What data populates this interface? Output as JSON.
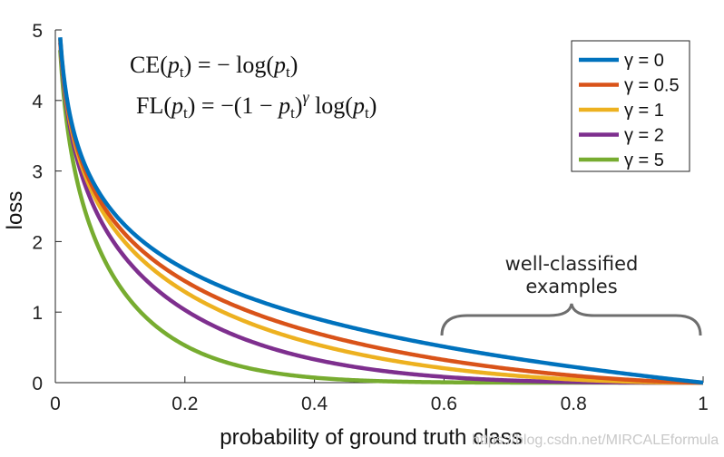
{
  "chart_data": {
    "type": "line",
    "xlabel": "probability of ground truth class",
    "ylabel": "loss",
    "xlim": [
      0,
      1
    ],
    "ylim": [
      0,
      5
    ],
    "xticks": [
      "0",
      "0.2",
      "0.4",
      "0.6",
      "0.8",
      "1"
    ],
    "yticks": [
      "0",
      "1",
      "2",
      "3",
      "4",
      "5"
    ],
    "legend_placement": "top-right",
    "series": [
      {
        "name": "γ = 0",
        "gamma": 0,
        "color": "#0072BD",
        "x": [
          0.05,
          0.1,
          0.2,
          0.3,
          0.4,
          0.5,
          0.6,
          0.7,
          0.8,
          0.9,
          1.0
        ],
        "values": [
          3.0,
          2.3,
          1.61,
          1.2,
          0.92,
          0.69,
          0.51,
          0.36,
          0.22,
          0.11,
          0.0
        ]
      },
      {
        "name": "γ = 0.5",
        "gamma": 0.5,
        "color": "#D95319",
        "x": [
          0.05,
          0.1,
          0.2,
          0.3,
          0.4,
          0.5,
          0.6,
          0.7,
          0.8,
          0.9,
          1.0
        ],
        "values": [
          2.92,
          2.18,
          1.44,
          1.0,
          0.71,
          0.49,
          0.32,
          0.2,
          0.1,
          0.03,
          0.0
        ]
      },
      {
        "name": "γ = 1",
        "gamma": 1,
        "color": "#EDB120",
        "x": [
          0.05,
          0.1,
          0.2,
          0.3,
          0.4,
          0.5,
          0.6,
          0.7,
          0.8,
          0.9,
          1.0
        ],
        "values": [
          2.85,
          2.07,
          1.29,
          0.84,
          0.55,
          0.35,
          0.2,
          0.11,
          0.04,
          0.01,
          0.0
        ]
      },
      {
        "name": "γ = 2",
        "gamma": 2,
        "color": "#7E2F8E",
        "x": [
          0.05,
          0.1,
          0.2,
          0.3,
          0.4,
          0.5,
          0.6,
          0.7,
          0.8,
          0.9,
          1.0
        ],
        "values": [
          2.7,
          1.87,
          1.03,
          0.59,
          0.33,
          0.17,
          0.08,
          0.03,
          0.01,
          0.0,
          0.0
        ]
      },
      {
        "name": "γ = 5",
        "gamma": 5,
        "color": "#77AC30",
        "x": [
          0.05,
          0.1,
          0.2,
          0.3,
          0.4,
          0.5,
          0.6,
          0.7,
          0.8,
          0.9,
          1.0
        ],
        "values": [
          2.32,
          1.36,
          0.53,
          0.2,
          0.07,
          0.02,
          0.01,
          0.0,
          0.0,
          0.0,
          0.0
        ]
      }
    ],
    "annotations": {
      "formula_ce": {
        "lhs": "CE",
        "arg": "p",
        "sub": "t",
        "rhs": "= − log(",
        "close": ")"
      },
      "formula_fl": {
        "lhs": "FL",
        "arg": "p",
        "sub": "t",
        "rhs_a": "= −(1 − ",
        "rhs_b": ")",
        "exp": "γ",
        "rhs_c": " log(",
        "close": ")"
      },
      "bracket_label_line1": "well-classified",
      "bracket_label_line2": "examples"
    },
    "watermark": "https://blog.csdn.net/MIRCALEformula"
  }
}
